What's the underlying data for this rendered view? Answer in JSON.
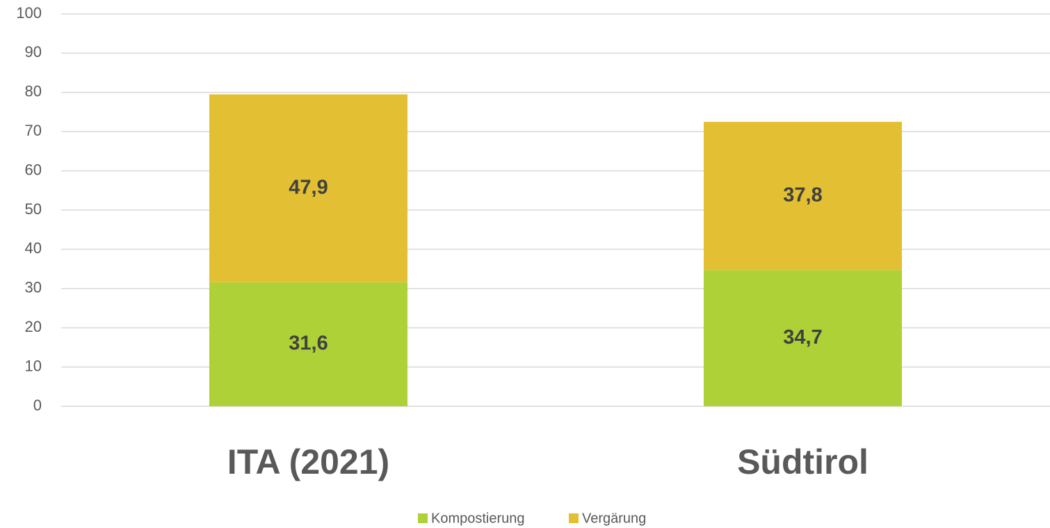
{
  "chart_data": {
    "type": "stacked_bar",
    "categories": [
      "ITA (2021)",
      "Südtirol"
    ],
    "series": [
      {
        "name": "Kompostierung",
        "color": "#add136",
        "values": [
          31.6,
          34.7
        ],
        "value_labels": [
          "31,6",
          "34,7"
        ]
      },
      {
        "name": "Vergärung",
        "color": "#e3c033",
        "values": [
          47.9,
          37.8
        ],
        "value_labels": [
          "47,9",
          "37,8"
        ]
      }
    ],
    "ylim": [
      0,
      100
    ],
    "yticks": [
      0,
      10,
      20,
      30,
      40,
      50,
      60,
      70,
      80,
      90,
      100
    ],
    "grid": true,
    "legend": "bottom"
  }
}
